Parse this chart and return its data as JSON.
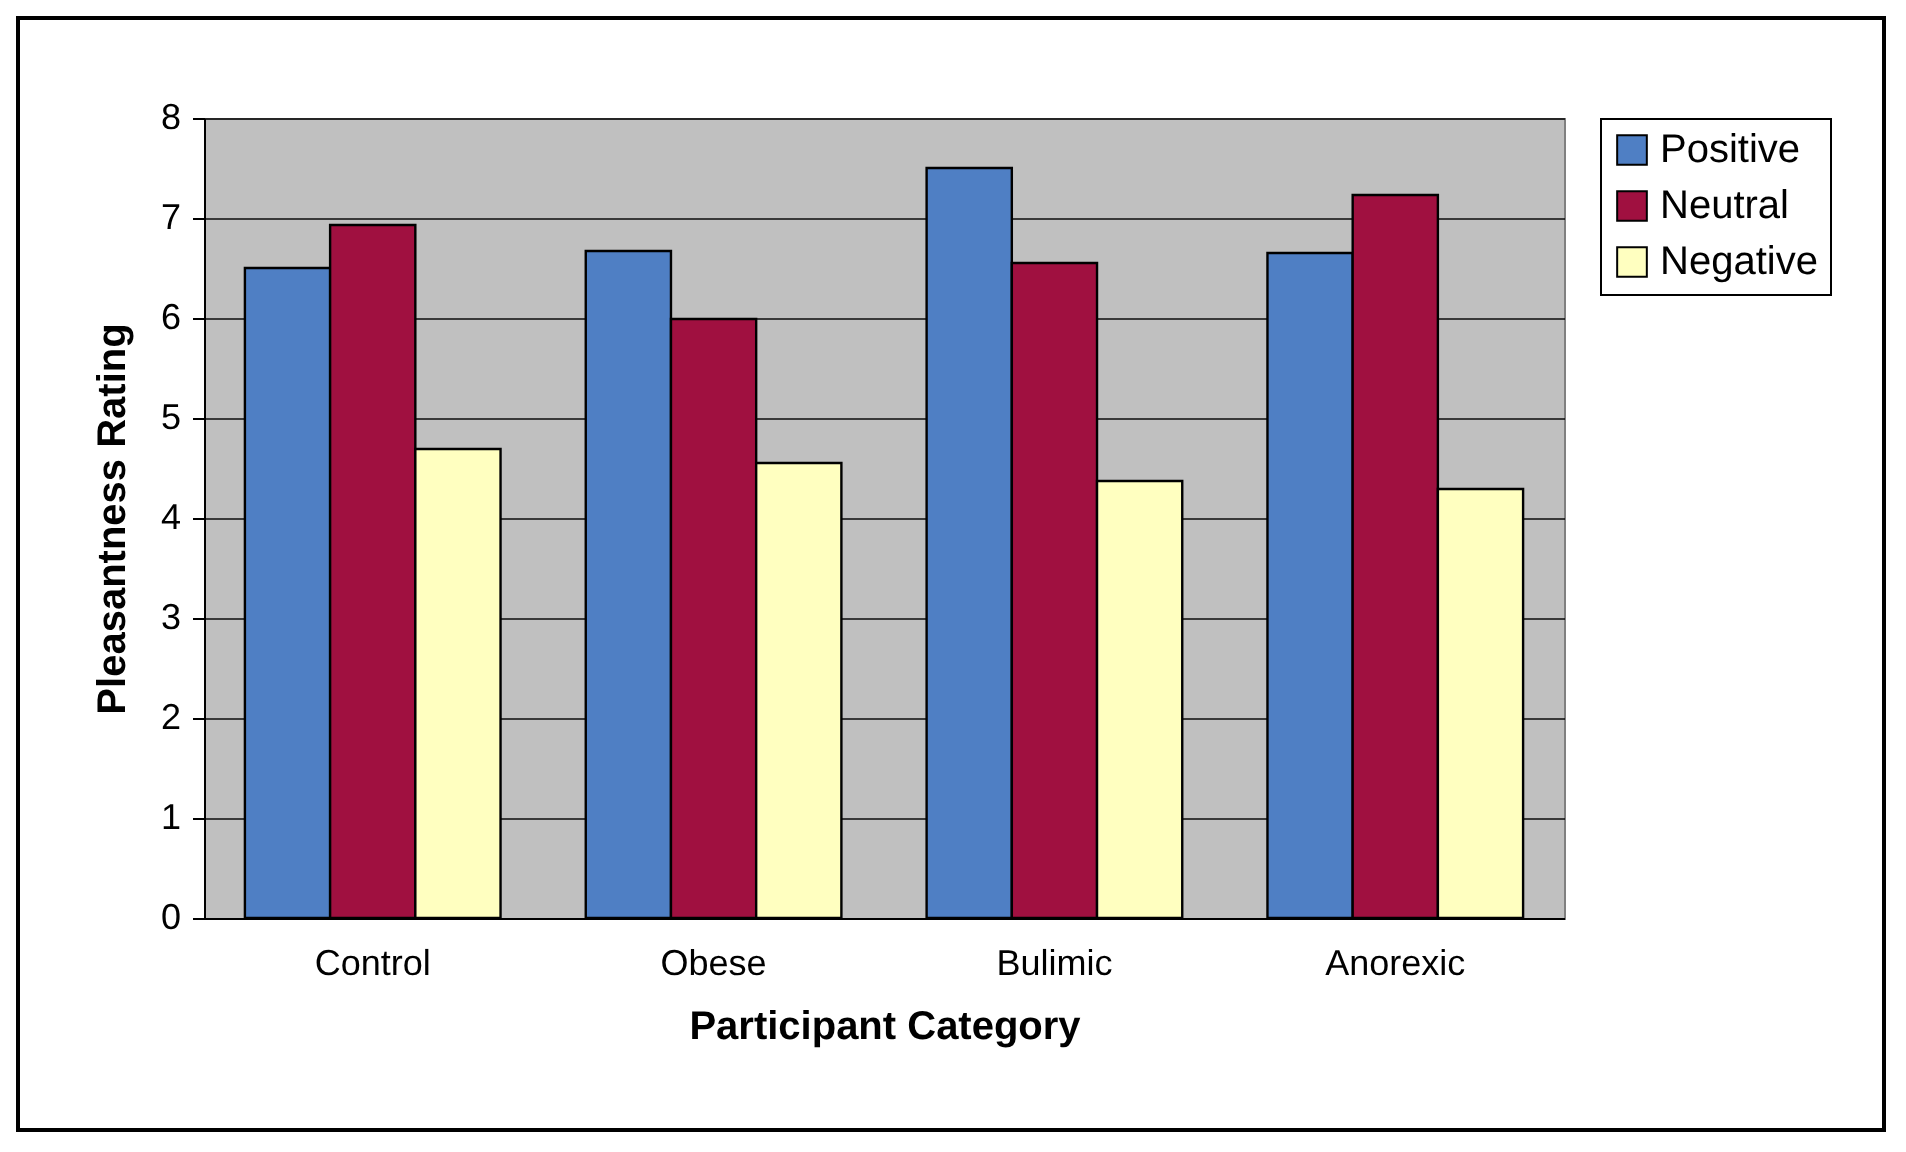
{
  "chart_data": {
    "type": "bar",
    "xlabel": "Participant Category",
    "ylabel": "Pleasantness Rating",
    "categories": [
      "Control",
      "Obese",
      "Bulimic",
      "Anorexic"
    ],
    "series": [
      {
        "name": "Positive",
        "color": "#4f7fc4",
        "values": [
          6.5,
          6.67,
          7.5,
          6.65
        ]
      },
      {
        "name": "Neutral",
        "color": "#a01040",
        "values": [
          6.93,
          5.99,
          6.55,
          7.23
        ]
      },
      {
        "name": "Negative",
        "color": "#ffffc0",
        "values": [
          4.69,
          4.55,
          4.37,
          4.29
        ]
      }
    ],
    "ylim": [
      0,
      8
    ],
    "yticks": [
      0,
      1,
      2,
      3,
      4,
      5,
      6,
      7,
      8
    ],
    "grid": "y",
    "legend": "right"
  }
}
